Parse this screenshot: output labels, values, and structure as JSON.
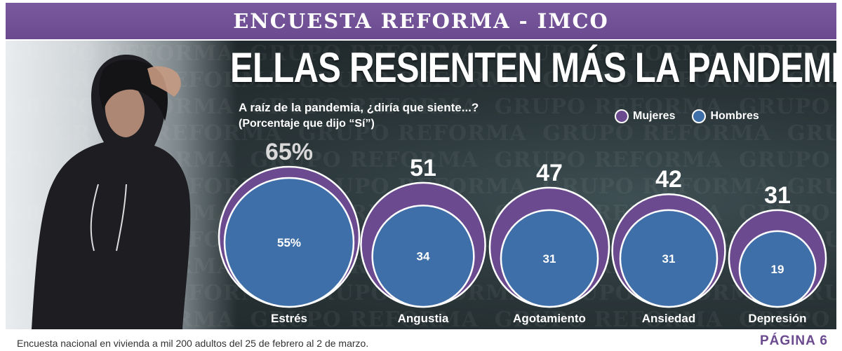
{
  "banner": {
    "title": "ENCUESTA REFORMA - IMCO"
  },
  "headline": "ELLAS RESIENTEN MÁS LA PANDEMIA",
  "question": "A raíz de la pandemia, ¿diría que siente...?",
  "question_sub": "(Porcentaje que dijo “Sí”)",
  "legend": [
    {
      "label": "Mujeres",
      "color": "#6b4a8f"
    },
    {
      "label": "Hombres",
      "color": "#3f6fa8"
    }
  ],
  "watermark_text": "GRUPO REFORMA",
  "footnote": "Encuesta nacional en vivienda a mil 200 adultos del 25 de febrero al 2 de marzo.",
  "page_ref": "PÁGINA 6",
  "chart_data": {
    "type": "nested-bubble",
    "categories": [
      "Estrés",
      "Angustia",
      "Agotamiento",
      "Ansiedad",
      "Depresión"
    ],
    "series": [
      {
        "name": "Mujeres",
        "values": [
          65,
          51,
          47,
          42,
          31
        ],
        "labels": [
          "65%",
          "51",
          "47",
          "42",
          "31"
        ],
        "color": "#6b4a8f"
      },
      {
        "name": "Hombres",
        "values": [
          55,
          34,
          31,
          31,
          19
        ],
        "labels": [
          "55%",
          "34",
          "31",
          "31",
          "19"
        ],
        "color": "#3f6fa8"
      }
    ]
  }
}
